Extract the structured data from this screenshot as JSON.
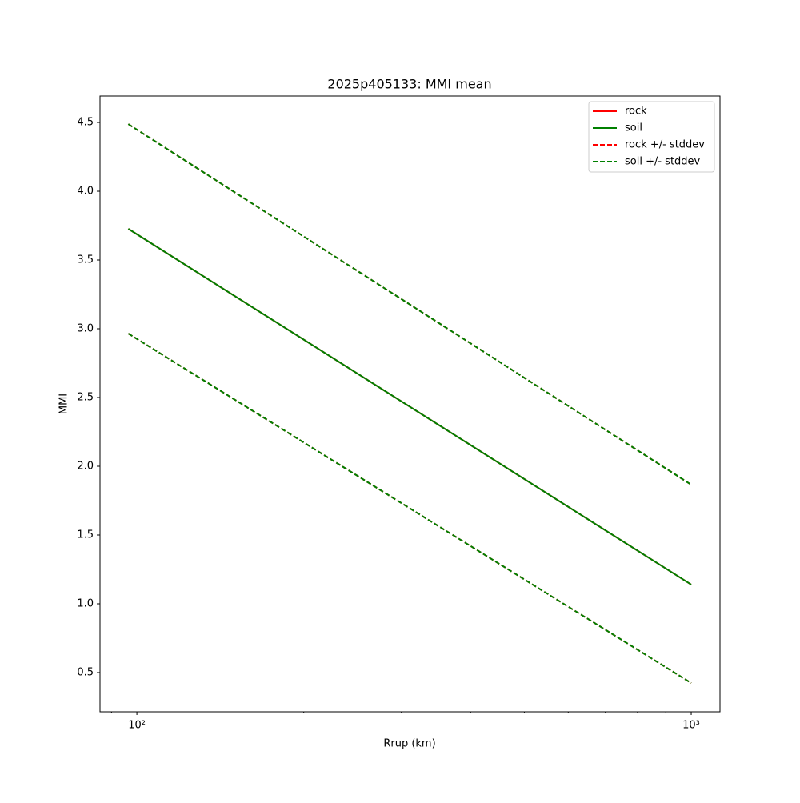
{
  "chart_data": {
    "type": "line",
    "title": "2025p405133: MMI mean",
    "xlabel": "Rrup (km)",
    "ylabel": "MMI",
    "xscale": "log",
    "x": [
      96.5,
      1000
    ],
    "series": [
      {
        "name": "rock",
        "color": "#ff0000",
        "dashed": false,
        "values": [
          3.727,
          1.14
        ]
      },
      {
        "name": "soil",
        "color": "#008000",
        "dashed": false,
        "values": [
          3.727,
          1.14
        ]
      },
      {
        "name": "rock +/- stddev",
        "color": "#ff0000",
        "dashed": true,
        "values": [
          4.488,
          1.866
        ],
        "lower": [
          2.965,
          0.424
        ]
      },
      {
        "name": "soil +/- stddev",
        "color": "#008000",
        "dashed": true,
        "values": [
          4.488,
          1.866
        ],
        "lower": [
          2.965,
          0.424
        ]
      }
    ],
    "xlim": [
      85.8,
      1127
    ],
    "xticks": [
      {
        "value": 100,
        "label": "10²"
      },
      {
        "value": 1000,
        "label": "10³"
      }
    ],
    "xminorticks": [
      90,
      200,
      300,
      400,
      500,
      600,
      700,
      800,
      900
    ],
    "ylim": [
      0.215,
      4.692
    ],
    "yticks": [
      {
        "value": 0.5,
        "label": "0.5"
      },
      {
        "value": 1,
        "label": "1.0"
      },
      {
        "value": 1.5,
        "label": "1.5"
      },
      {
        "value": 2,
        "label": "2.0"
      },
      {
        "value": 2.5,
        "label": "2.5"
      },
      {
        "value": 3,
        "label": "3.0"
      },
      {
        "value": 3.5,
        "label": "3.5"
      },
      {
        "value": 4,
        "label": "4.0"
      },
      {
        "value": 4.5,
        "label": "4.5"
      }
    ],
    "grid": false,
    "legend": "upper right"
  }
}
